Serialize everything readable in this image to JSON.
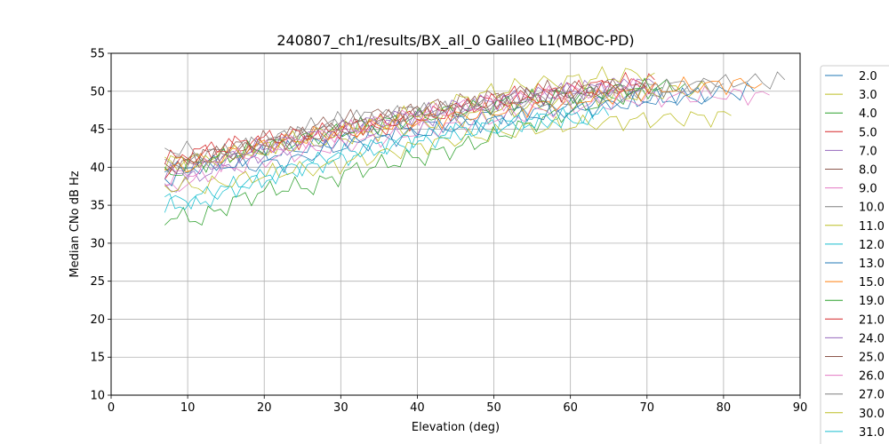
{
  "chart_data": {
    "type": "line",
    "title": "240807_ch1/results/BX_all_0 Galileo L1(MBOC-PD)",
    "xlabel": "Elevation (deg)",
    "ylabel": "Median CNo dB Hz",
    "xlim": [
      0,
      90
    ],
    "ylim": [
      10,
      55
    ],
    "xticks": [
      "0",
      "10",
      "20",
      "30",
      "40",
      "50",
      "60",
      "70",
      "80",
      "90"
    ],
    "yticks": [
      "10",
      "15",
      "20",
      "25",
      "30",
      "35",
      "40",
      "45",
      "50",
      "55"
    ],
    "grid": true,
    "legend_position": "right",
    "series": [
      {
        "name": "2.0",
        "color": "#1f77b4",
        "x_range": [
          7,
          78
        ],
        "values": [
          39.5,
          40.3,
          41.2,
          42.0,
          43.0,
          43.9,
          44.8,
          45.6,
          46.4,
          47.2,
          47.8,
          48.3,
          48.8,
          49.1,
          49.3
        ]
      },
      {
        "name": "3.0",
        "color": "#bcbd22",
        "x_range": [
          7,
          78
        ],
        "values": [
          40.5,
          41.0,
          41.8,
          42.6,
          43.4,
          44.3,
          45.1,
          46.0,
          46.8,
          47.6,
          48.3,
          48.9,
          49.5,
          50.0,
          50.2
        ]
      },
      {
        "name": "4.0",
        "color": "#2ca02c",
        "x_range": [
          7,
          75
        ],
        "values": [
          33.5,
          33.2,
          35.8,
          37.2,
          37.5,
          39.5,
          40.5,
          41.5,
          42.7,
          44.2,
          46.0,
          47.5,
          49.0,
          50.2,
          51.0
        ]
      },
      {
        "name": "5.0",
        "color": "#d62728",
        "x_range": [
          7,
          71
        ],
        "values": [
          40.8,
          42.0,
          42.8,
          43.2,
          43.8,
          44.5,
          45.2,
          46.0,
          47.2,
          48.5,
          49.5,
          50.0,
          50.5,
          51.0,
          51.5
        ]
      },
      {
        "name": "7.0",
        "color": "#9467bd",
        "x_range": [
          7,
          71
        ],
        "values": [
          37.0,
          39.0,
          40.8,
          42.0,
          43.0,
          44.0,
          45.0,
          46.0,
          47.0,
          48.0,
          49.0,
          49.8,
          50.3,
          50.8,
          51.0
        ]
      },
      {
        "name": "8.0",
        "color": "#8c564b",
        "x_range": [
          7,
          67
        ],
        "values": [
          40.2,
          41.3,
          42.3,
          43.5,
          44.5,
          45.8,
          46.5,
          47.1,
          47.8,
          48.5,
          49.2,
          49.8,
          50.2,
          50.5,
          50.5
        ]
      },
      {
        "name": "9.0",
        "color": "#e377c2",
        "x_range": [
          7,
          86
        ],
        "values": [
          36.8,
          39.0,
          40.5,
          41.8,
          42.8,
          43.8,
          44.8,
          45.8,
          46.8,
          47.6,
          48.3,
          48.9,
          49.3,
          49.5,
          49.5
        ]
      },
      {
        "name": "10.0",
        "color": "#7f7f7f",
        "x_range": [
          7,
          88
        ],
        "values": [
          42.5,
          41.8,
          42.8,
          44.2,
          46.0,
          46.8,
          47.5,
          47.8,
          48.3,
          48.9,
          49.5,
          50.0,
          50.8,
          51.3,
          51.5
        ]
      },
      {
        "name": "11.0",
        "color": "#bcbd22",
        "x_range": [
          7,
          71
        ],
        "values": [
          41.0,
          40.2,
          41.8,
          43.0,
          44.0,
          44.8,
          45.8,
          47.0,
          48.2,
          49.5,
          50.5,
          51.2,
          51.6,
          52.1,
          52.4
        ]
      },
      {
        "name": "12.0",
        "color": "#17becf",
        "x_range": [
          7,
          63
        ],
        "values": [
          35.5,
          35.0,
          37.0,
          38.2,
          39.5,
          40.5,
          41.5,
          42.5,
          43.2,
          44.0,
          44.8,
          45.5,
          46.0,
          46.5,
          46.3
        ]
      },
      {
        "name": "13.0",
        "color": "#1f77b4",
        "x_range": [
          7,
          84
        ],
        "values": [
          38.5,
          40.5,
          40.2,
          40.8,
          42.5,
          43.5,
          44.5,
          45.5,
          46.3,
          47.0,
          47.8,
          48.5,
          49.2,
          49.7,
          50.0
        ]
      },
      {
        "name": "15.0",
        "color": "#ff7f0e",
        "x_range": [
          7,
          85
        ],
        "values": [
          39.5,
          40.8,
          42.5,
          43.5,
          44.8,
          45.5,
          46.2,
          46.8,
          47.5,
          48.3,
          49.1,
          49.8,
          50.5,
          50.9,
          51.0
        ]
      },
      {
        "name": "19.0",
        "color": "#2ca02c",
        "x_range": [
          7,
          72
        ],
        "values": [
          39.0,
          40.5,
          41.8,
          42.8,
          43.8,
          44.8,
          45.7,
          46.5,
          47.3,
          48.0,
          48.7,
          49.3,
          49.8,
          50.3,
          50.5
        ]
      },
      {
        "name": "21.0",
        "color": "#d62728",
        "x_range": [
          7,
          71
        ],
        "values": [
          39.5,
          41.8,
          43.0,
          43.8,
          44.3,
          45.0,
          45.7,
          46.5,
          47.3,
          48.3,
          49.0,
          49.7,
          50.2,
          50.7,
          51.0
        ]
      },
      {
        "name": "24.0",
        "color": "#9467bd",
        "x_range": [
          7,
          70
        ],
        "values": [
          38.8,
          40.0,
          41.5,
          42.8,
          43.8,
          44.8,
          45.8,
          46.8,
          47.6,
          48.3,
          49.0,
          49.6,
          50.1,
          50.5,
          50.8
        ]
      },
      {
        "name": "25.0",
        "color": "#8c564b",
        "x_range": [
          7,
          70
        ],
        "values": [
          40.0,
          41.0,
          42.0,
          43.0,
          44.0,
          45.0,
          46.0,
          46.8,
          47.6,
          48.3,
          49.0,
          49.5,
          50.0,
          50.3,
          50.5
        ]
      },
      {
        "name": "26.0",
        "color": "#e377c2",
        "x_range": [
          7,
          69
        ],
        "values": [
          38.0,
          39.8,
          41.3,
          42.5,
          43.5,
          44.5,
          45.5,
          46.5,
          47.3,
          48.0,
          48.7,
          49.3,
          49.8,
          50.2,
          50.5
        ]
      },
      {
        "name": "27.0",
        "color": "#7f7f7f",
        "x_range": [
          7,
          80
        ],
        "values": [
          40.0,
          41.0,
          42.5,
          44.0,
          45.8,
          46.5,
          47.0,
          47.5,
          48.0,
          48.7,
          49.3,
          49.9,
          50.4,
          50.8,
          51.0
        ]
      },
      {
        "name": "30.0",
        "color": "#bcbd22",
        "x_range": [
          7,
          81
        ],
        "values": [
          37.5,
          37.5,
          38.5,
          39.5,
          40.0,
          41.2,
          42.5,
          43.5,
          44.3,
          45.0,
          45.5,
          46.0,
          46.3,
          46.5,
          46.8
        ]
      },
      {
        "name": "31.0",
        "color": "#17becf",
        "x_range": [
          7,
          65
        ],
        "values": [
          35.2,
          36.0,
          37.2,
          38.5,
          39.8,
          41.0,
          42.2,
          43.0,
          43.8,
          44.6,
          45.2,
          45.8,
          46.2,
          46.5,
          46.8
        ]
      }
    ]
  }
}
